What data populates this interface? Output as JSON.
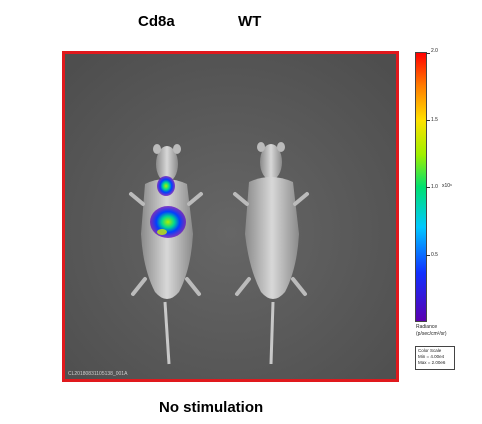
{
  "header": {
    "left_label": "Cd8a",
    "right_label": "WT"
  },
  "caption": "No stimulation",
  "image_id": "CL20180831105138_001A",
  "colorbar": {
    "ticks": [
      "2.0",
      "1.5",
      "1.0",
      "0.5"
    ],
    "exponent": "x10⁶",
    "title": "Radiance",
    "units": "(p/sec/cm²/sr)",
    "scale_title": "Color Scale",
    "scale_min": "Min = 4.00e4",
    "scale_max": "Max = 2.00e6"
  },
  "colors": {
    "frame": "#e0191d",
    "background": "#5a5a5a"
  }
}
